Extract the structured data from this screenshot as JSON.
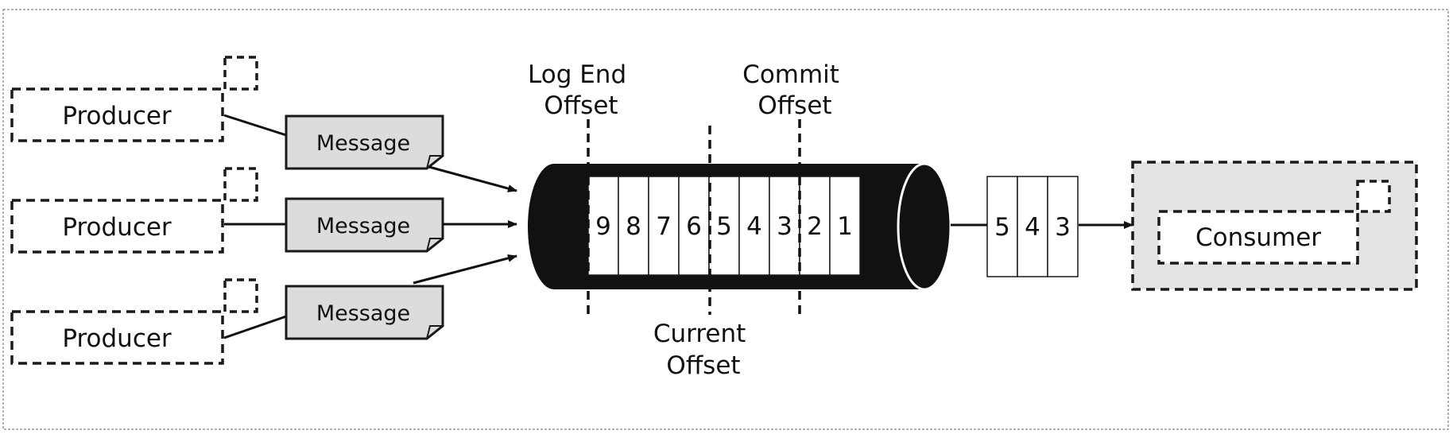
{
  "producers": [
    {
      "label": "Producer"
    },
    {
      "label": "Producer"
    },
    {
      "label": "Producer"
    }
  ],
  "messages": [
    {
      "label": "Message"
    },
    {
      "label": "Message"
    },
    {
      "label": "Message"
    }
  ],
  "topic_log": {
    "cells": [
      "9",
      "8",
      "7",
      "6",
      "5",
      "4",
      "3",
      "2",
      "1"
    ]
  },
  "offsets": {
    "log_end": [
      "Log End",
      "Offset"
    ],
    "commit": [
      "Commit",
      "Offset"
    ],
    "current": [
      "Current",
      "Offset"
    ]
  },
  "batch": {
    "cells": [
      "5",
      "4",
      "3"
    ]
  },
  "consumer": {
    "label": "Consumer"
  }
}
